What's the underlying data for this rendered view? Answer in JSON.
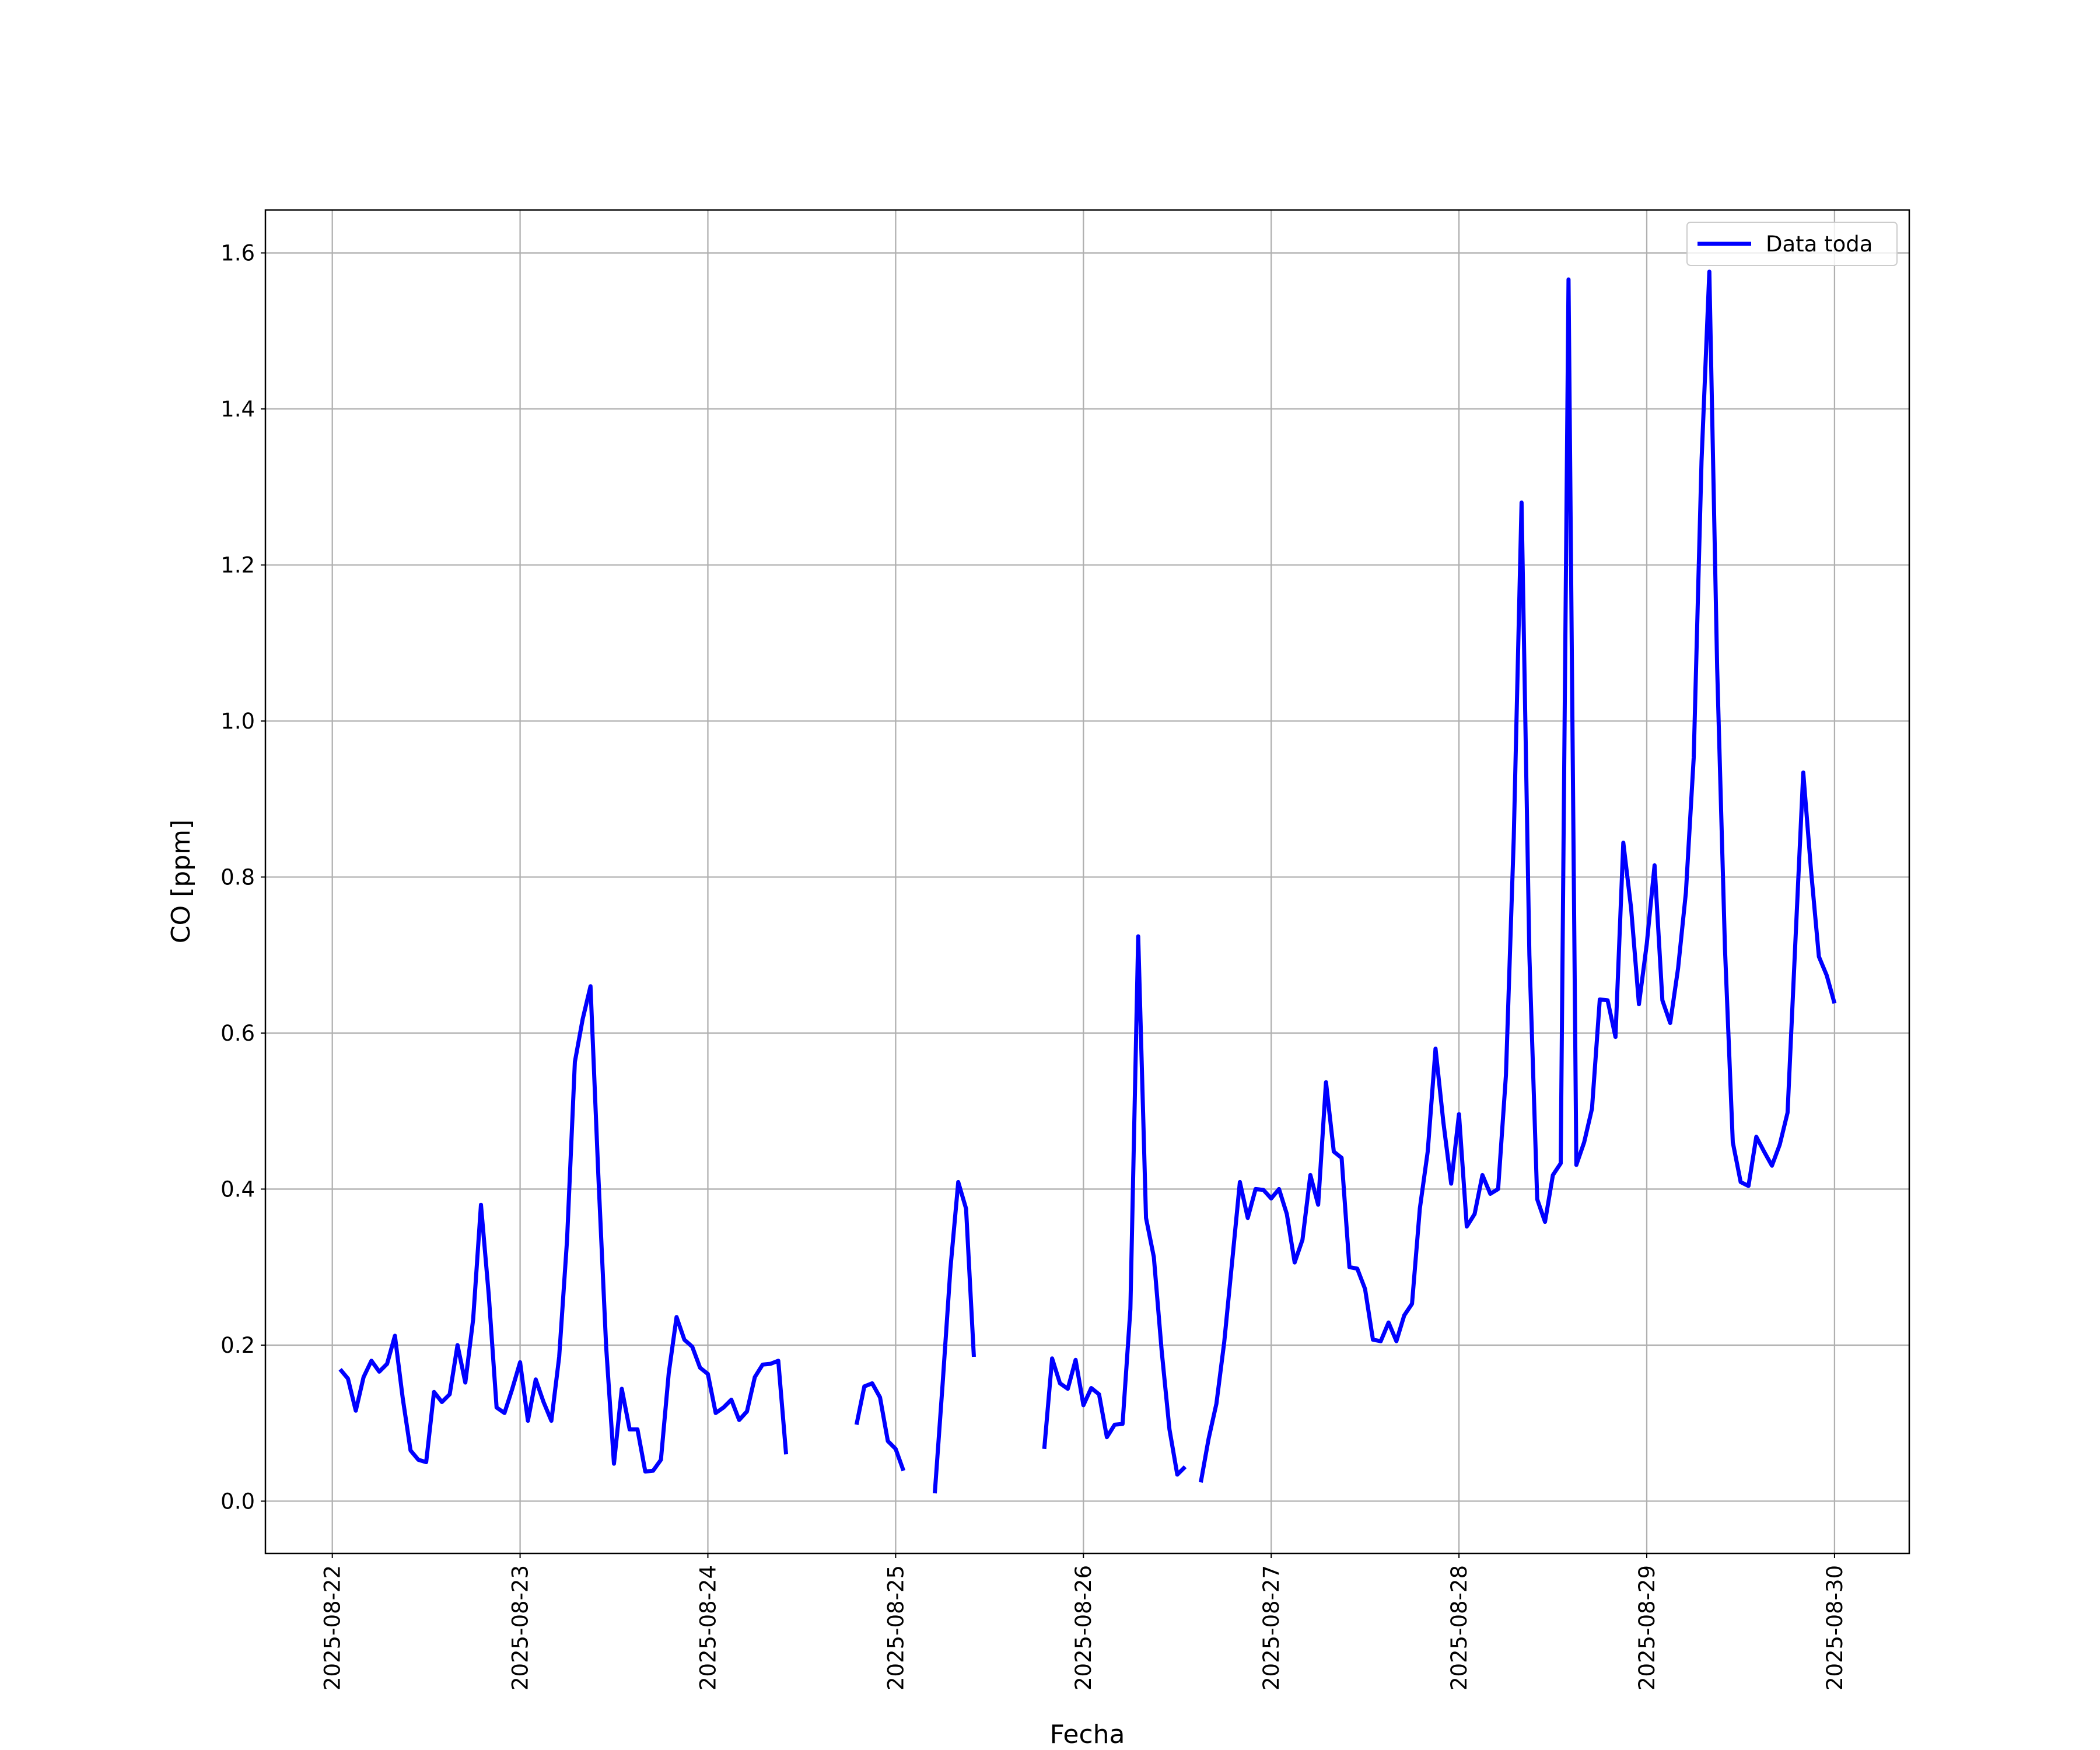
{
  "chart_data": {
    "type": "line",
    "xlabel": "Fecha",
    "ylabel": "CO [ppm]",
    "x": [
      "2025-08-22 01:00",
      "2025-08-22 02:00",
      "2025-08-22 03:00",
      "2025-08-22 04:00",
      "2025-08-22 05:00",
      "2025-08-22 06:00",
      "2025-08-22 07:00",
      "2025-08-22 08:00",
      "2025-08-22 09:00",
      "2025-08-22 10:00",
      "2025-08-22 11:00",
      "2025-08-22 12:00",
      "2025-08-22 13:00",
      "2025-08-22 14:00",
      "2025-08-22 15:00",
      "2025-08-22 16:00",
      "2025-08-22 17:00",
      "2025-08-22 18:00",
      "2025-08-22 19:00",
      "2025-08-22 20:00",
      "2025-08-22 21:00",
      "2025-08-22 22:00",
      "2025-08-22 23:00",
      "2025-08-23 00:00",
      "2025-08-23 01:00",
      "2025-08-23 02:00",
      "2025-08-23 03:00",
      "2025-08-23 04:00",
      "2025-08-23 05:00",
      "2025-08-23 06:00",
      "2025-08-23 07:00",
      "2025-08-23 08:00",
      "2025-08-23 09:00",
      "2025-08-23 10:00",
      "2025-08-23 11:00",
      "2025-08-23 12:00",
      "2025-08-23 13:00",
      "2025-08-23 14:00",
      "2025-08-23 15:00",
      "2025-08-23 16:00",
      "2025-08-23 17:00",
      "2025-08-23 18:00",
      "2025-08-23 19:00",
      "2025-08-23 20:00",
      "2025-08-23 21:00",
      "2025-08-23 22:00",
      "2025-08-23 23:00",
      "2025-08-24 00:00",
      "2025-08-24 01:00",
      "2025-08-24 02:00",
      "2025-08-24 03:00",
      "2025-08-24 04:00",
      "2025-08-24 05:00",
      "2025-08-24 06:00",
      "2025-08-24 07:00",
      "2025-08-24 08:00",
      "2025-08-24 09:00",
      "2025-08-24 10:00",
      "2025-08-24 11:00",
      "2025-08-24 12:00",
      "2025-08-24 13:00",
      "2025-08-24 14:00",
      "2025-08-24 15:00",
      "2025-08-24 16:00",
      "2025-08-24 17:00",
      "2025-08-24 18:00",
      "2025-08-24 19:00",
      "2025-08-24 20:00",
      "2025-08-24 21:00",
      "2025-08-24 22:00",
      "2025-08-24 23:00",
      "2025-08-25 00:00",
      "2025-08-25 01:00",
      "2025-08-25 02:00",
      "2025-08-25 03:00",
      "2025-08-25 04:00",
      "2025-08-25 05:00",
      "2025-08-25 06:00",
      "2025-08-25 07:00",
      "2025-08-25 08:00",
      "2025-08-25 09:00",
      "2025-08-25 10:00",
      "2025-08-25 11:00",
      "2025-08-25 12:00",
      "2025-08-25 13:00",
      "2025-08-25 14:00",
      "2025-08-25 15:00",
      "2025-08-25 16:00",
      "2025-08-25 17:00",
      "2025-08-25 18:00",
      "2025-08-25 19:00",
      "2025-08-25 20:00",
      "2025-08-25 21:00",
      "2025-08-25 22:00",
      "2025-08-25 23:00",
      "2025-08-26 00:00",
      "2025-08-26 01:00",
      "2025-08-26 02:00",
      "2025-08-26 03:00",
      "2025-08-26 04:00",
      "2025-08-26 05:00",
      "2025-08-26 06:00",
      "2025-08-26 07:00",
      "2025-08-26 08:00",
      "2025-08-26 09:00",
      "2025-08-26 10:00",
      "2025-08-26 11:00",
      "2025-08-26 12:00",
      "2025-08-26 13:00",
      "2025-08-26 14:00",
      "2025-08-26 15:00",
      "2025-08-26 16:00",
      "2025-08-26 17:00",
      "2025-08-26 18:00",
      "2025-08-26 19:00",
      "2025-08-26 20:00",
      "2025-08-26 21:00",
      "2025-08-26 22:00",
      "2025-08-26 23:00",
      "2025-08-27 00:00",
      "2025-08-27 01:00",
      "2025-08-27 02:00",
      "2025-08-27 03:00",
      "2025-08-27 04:00",
      "2025-08-27 05:00",
      "2025-08-27 06:00",
      "2025-08-27 07:00",
      "2025-08-27 08:00",
      "2025-08-27 09:00",
      "2025-08-27 10:00",
      "2025-08-27 11:00",
      "2025-08-27 12:00",
      "2025-08-27 13:00",
      "2025-08-27 14:00",
      "2025-08-27 15:00",
      "2025-08-27 16:00",
      "2025-08-27 17:00",
      "2025-08-27 18:00",
      "2025-08-27 19:00",
      "2025-08-27 20:00",
      "2025-08-27 21:00",
      "2025-08-27 22:00",
      "2025-08-27 23:00",
      "2025-08-28 00:00",
      "2025-08-28 01:00",
      "2025-08-28 02:00",
      "2025-08-28 03:00",
      "2025-08-28 04:00",
      "2025-08-28 05:00",
      "2025-08-28 06:00",
      "2025-08-28 07:00",
      "2025-08-28 08:00",
      "2025-08-28 09:00",
      "2025-08-28 10:00",
      "2025-08-28 11:00",
      "2025-08-28 12:00",
      "2025-08-28 13:00",
      "2025-08-28 14:00",
      "2025-08-28 15:00",
      "2025-08-28 16:00",
      "2025-08-28 17:00",
      "2025-08-28 18:00",
      "2025-08-28 19:00",
      "2025-08-28 20:00",
      "2025-08-28 21:00",
      "2025-08-28 22:00",
      "2025-08-28 23:00",
      "2025-08-29 00:00",
      "2025-08-29 01:00",
      "2025-08-29 02:00",
      "2025-08-29 03:00",
      "2025-08-29 04:00",
      "2025-08-29 05:00",
      "2025-08-29 06:00",
      "2025-08-29 07:00",
      "2025-08-29 08:00",
      "2025-08-29 09:00",
      "2025-08-29 10:00",
      "2025-08-29 11:00",
      "2025-08-29 12:00",
      "2025-08-29 13:00",
      "2025-08-29 14:00",
      "2025-08-29 15:00",
      "2025-08-29 16:00",
      "2025-08-29 17:00",
      "2025-08-29 18:00",
      "2025-08-29 19:00",
      "2025-08-29 20:00",
      "2025-08-29 21:00",
      "2025-08-29 22:00",
      "2025-08-29 23:00",
      "2025-08-30 00:00"
    ],
    "series": [
      {
        "name": "Data toda",
        "color": "#0000ff",
        "values": [
          0.169,
          0.157,
          0.116,
          0.159,
          0.18,
          0.166,
          0.176,
          0.212,
          0.132,
          0.065,
          0.053,
          0.05,
          0.14,
          0.127,
          0.137,
          0.2,
          0.152,
          0.233,
          0.38,
          0.264,
          0.12,
          0.113,
          0.144,
          0.178,
          0.103,
          0.156,
          0.127,
          0.103,
          0.185,
          0.335,
          0.563,
          0.618,
          0.66,
          0.418,
          0.198,
          0.048,
          0.144,
          0.092,
          0.092,
          0.038,
          0.039,
          0.053,
          0.164,
          0.236,
          0.207,
          0.198,
          0.171,
          0.163,
          0.113,
          0.12,
          0.13,
          0.104,
          0.115,
          0.159,
          0.175,
          0.176,
          0.18,
          0.06,
          null,
          null,
          null,
          null,
          null,
          null,
          null,
          null,
          0.098,
          0.147,
          0.151,
          0.133,
          0.077,
          0.067,
          0.039,
          null,
          null,
          null,
          0.01,
          0.15,
          0.298,
          0.409,
          0.375,
          0.185,
          null,
          null,
          null,
          null,
          null,
          null,
          null,
          null,
          0.067,
          0.183,
          0.151,
          0.144,
          0.181,
          0.123,
          0.145,
          0.137,
          0.082,
          0.098,
          0.099,
          0.246,
          0.724,
          0.363,
          0.313,
          0.193,
          0.092,
          0.034,
          0.044,
          null,
          0.024,
          0.08,
          0.125,
          0.204,
          0.306,
          0.409,
          0.363,
          0.4,
          0.399,
          0.388,
          0.4,
          0.368,
          0.306,
          0.335,
          0.418,
          0.38,
          0.537,
          0.448,
          0.44,
          0.3,
          0.298,
          0.272,
          0.207,
          0.205,
          0.229,
          0.205,
          0.238,
          0.253,
          0.375,
          0.448,
          0.58,
          0.486,
          0.407,
          0.496,
          0.352,
          0.368,
          0.418,
          0.394,
          0.4,
          0.546,
          0.85,
          1.28,
          0.7,
          0.387,
          0.358,
          0.418,
          0.433,
          1.566,
          0.431,
          0.46,
          0.503,
          0.643,
          0.642,
          0.595,
          0.844,
          0.76,
          0.637,
          0.714,
          0.815,
          0.642,
          0.613,
          0.683,
          0.78,
          0.953,
          1.333,
          1.576,
          1.068,
          0.708,
          0.46,
          0.409,
          0.404,
          0.467,
          0.448,
          0.43,
          0.457,
          0.498,
          0.717,
          0.934,
          0.808,
          0.698,
          0.674,
          0.638
        ]
      }
    ],
    "xlim": [
      "2025-08-21 15:27",
      "2025-08-30 09:33"
    ],
    "xticks": [
      "2025-08-22",
      "2025-08-23",
      "2025-08-24",
      "2025-08-25",
      "2025-08-26",
      "2025-08-27",
      "2025-08-28",
      "2025-08-29",
      "2025-08-30"
    ],
    "ylim": [
      -0.067,
      1.655
    ],
    "yticks": [
      {
        "value": 0,
        "label": "0.0"
      },
      0.2,
      0.4,
      0.6,
      0.8,
      {
        "value": 1,
        "label": "1.0"
      },
      1.2,
      1.4,
      1.6
    ],
    "grid": true,
    "legend": "upper right"
  }
}
